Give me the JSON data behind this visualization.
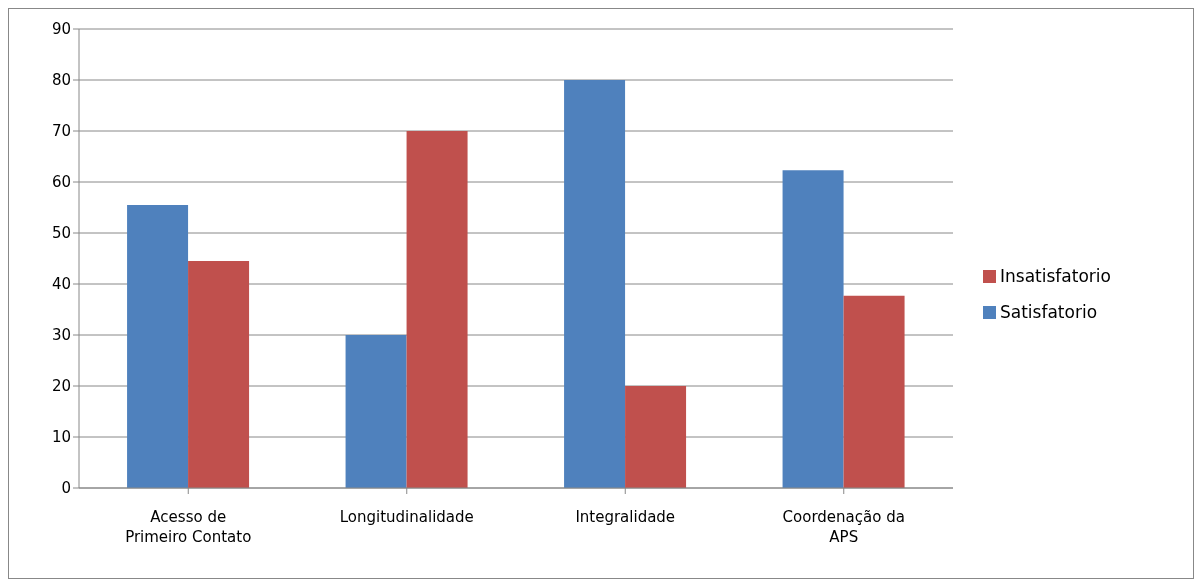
{
  "chart_data": {
    "type": "bar",
    "categories": [
      "Acesso de Primeiro Contato",
      "Longitudinalidade",
      "Integralidade",
      "Coordenação da APS"
    ],
    "series": [
      {
        "name": "Satisfatorio",
        "color": "#4f81bd",
        "values": [
          55.5,
          30,
          80,
          62.3
        ]
      },
      {
        "name": "Insatisfatorio",
        "color": "#c0504d",
        "values": [
          44.5,
          70,
          20,
          37.7
        ]
      }
    ],
    "ylim": [
      0,
      90
    ],
    "yticks": [
      0,
      10,
      20,
      30,
      40,
      50,
      60,
      70,
      80,
      90
    ],
    "grid": "y",
    "legend": "right"
  }
}
